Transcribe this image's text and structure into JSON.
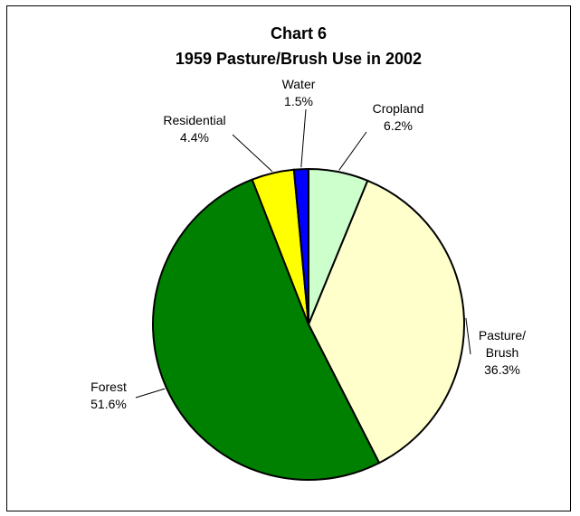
{
  "chart_data": {
    "type": "pie",
    "title": "Chart 6",
    "subtitle": "1959 Pasture/Brush Use in 2002",
    "legend": "none",
    "slices": [
      {
        "label": "Cropland",
        "value": 6.2,
        "value_label": "6.2%",
        "color": "#ccffcc"
      },
      {
        "label": "Pasture/ Brush",
        "value": 36.3,
        "value_label": "36.3%",
        "color": "#ffffcc"
      },
      {
        "label": "Forest",
        "value": 51.6,
        "value_label": "51.6%",
        "color": "#008000"
      },
      {
        "label": "Residential",
        "value": 4.4,
        "value_label": "4.4%",
        "color": "#ffff00"
      },
      {
        "label": "Water",
        "value": 1.5,
        "value_label": "1.5%",
        "color": "#0000ff"
      }
    ]
  }
}
